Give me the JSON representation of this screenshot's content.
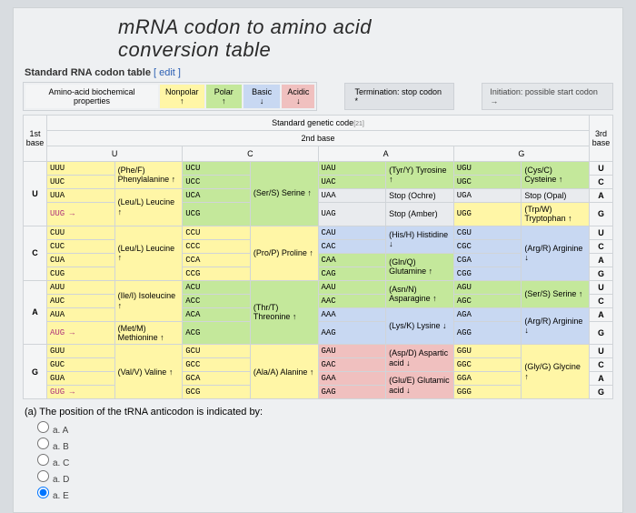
{
  "title_line1": "mRNA codon to amino acid",
  "title_line2": "conversion table",
  "subtitle": "Standard RNA codon table",
  "edit_link": "[ edit ]",
  "props_label": "Amino-acid biochemical properties",
  "props": {
    "np": "Nonpolar",
    "npdn": "↑",
    "po": "Polar ↑",
    "ba": "Basic ↓",
    "ac": "Acidic",
    "acdn": "↓"
  },
  "term_label": "Termination: stop codon *",
  "init_label": "Initiation: possible start codon →",
  "head": {
    "stdcode": "Standard genetic code",
    "second": "2nd base",
    "firstbase": "1st base",
    "thirdbase": "3rd base",
    "U": "U",
    "C": "C",
    "A": "A",
    "G": "G"
  },
  "rows": [
    {
      "L": "U",
      "c1": [
        "UUU",
        "UUC",
        "UUA",
        "UUG →"
      ],
      "a1": "(Phe/F) Phenylalanine ↑",
      "a1b": "(Leu/L) Leucine ↑",
      "c2": [
        "UCU",
        "UCC",
        "UCA",
        "UCG"
      ],
      "a2": "(Ser/S) Serine ↑",
      "c3": [
        "UAU",
        "UAC",
        "UAA",
        "UAG"
      ],
      "a3": "(Tyr/Y) Tyrosine ↑",
      "a3s1": "Stop (Ochre)",
      "a3s2": "Stop (Amber)",
      "c4": [
        "UGU",
        "UGC",
        "UGA",
        "UGG"
      ],
      "a4": "(Cys/C) Cysteine ↑",
      "a4s": "Stop (Opal)",
      "a4b": "(Trp/W) Tryptophan ↑",
      "R": [
        "U",
        "C",
        "A",
        "G"
      ]
    },
    {
      "L": "C",
      "c1": [
        "CUU",
        "CUC",
        "CUA",
        "CUG"
      ],
      "a1": "(Leu/L) Leucine ↑",
      "c2": [
        "CCU",
        "CCC",
        "CCA",
        "CCG"
      ],
      "a2": "(Pro/P) Proline ↑",
      "c3": [
        "CAU",
        "CAC",
        "CAA",
        "CAG"
      ],
      "a3": "(His/H) Histidine ↓",
      "a3b": "(Gln/Q) Glutamine ↑",
      "c4": [
        "CGU",
        "CGC",
        "CGA",
        "CGG"
      ],
      "a4": "(Arg/R) Arginine ↓",
      "R": [
        "U",
        "C",
        "A",
        "G"
      ]
    },
    {
      "L": "A",
      "c1": [
        "AUU",
        "AUC",
        "AUA",
        "AUG →"
      ],
      "a1": "(Ile/I) Isoleucine ↑",
      "a1b": "(Met/M) Methionine ↑",
      "c2": [
        "ACU",
        "ACC",
        "ACA",
        "ACG"
      ],
      "a2": "(Thr/T) Threonine ↑",
      "c3": [
        "AAU",
        "AAC",
        "AAA",
        "AAG"
      ],
      "a3": "(Asn/N) Asparagine ↑",
      "a3b": "(Lys/K) Lysine ↓",
      "c4": [
        "AGU",
        "AGC",
        "AGA",
        "AGG"
      ],
      "a4": "(Ser/S) Serine ↑",
      "a4b": "(Arg/R) Arginine ↓",
      "R": [
        "U",
        "C",
        "A",
        "G"
      ]
    },
    {
      "L": "G",
      "c1": [
        "GUU",
        "GUC",
        "GUA",
        "GUG →"
      ],
      "a1": "(Val/V) Valine ↑",
      "c2": [
        "GCU",
        "GCC",
        "GCA",
        "GCG"
      ],
      "a2": "(Ala/A) Alanine ↑",
      "c3": [
        "GAU",
        "GAC",
        "GAA",
        "GAG"
      ],
      "a3": "(Asp/D) Aspartic acid ↓",
      "a3b": "(Glu/E) Glutamic acid ↓",
      "c4": [
        "GGU",
        "GGC",
        "GGA",
        "GGG"
      ],
      "a4": "(Gly/G) Glycine ↑",
      "R": [
        "U",
        "C",
        "A",
        "G"
      ]
    }
  ],
  "question": "(a) The position of the tRNA anticodon is indicated by:",
  "options": [
    "a.  A",
    "a.  B",
    "a.  C",
    "a.  D",
    "a.  E"
  ],
  "colors": {
    "np": "#fff6a6",
    "po": "#c4e89b",
    "ba": "#c8d8f2",
    "ac": "#f0c0bf",
    "stop": "#e9ebee"
  }
}
